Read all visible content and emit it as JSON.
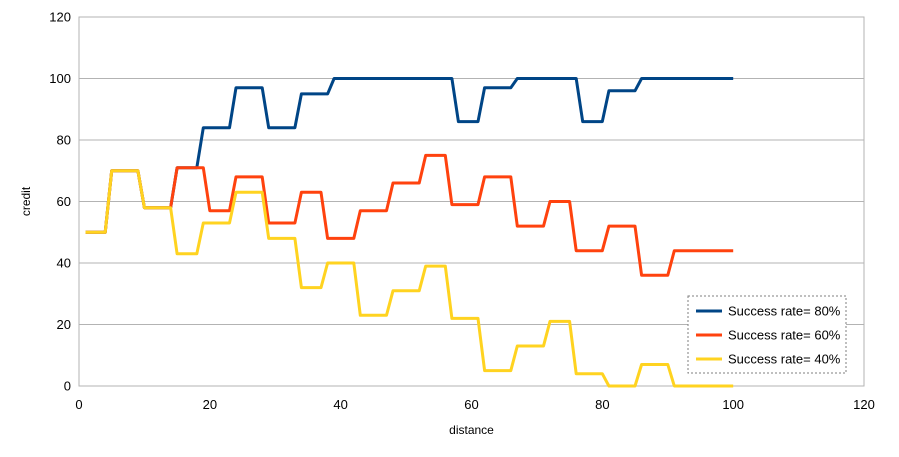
{
  "chart_data": {
    "type": "line",
    "title": "",
    "xlabel": "distance",
    "ylabel": "credit",
    "xlim": [
      0,
      120
    ],
    "ylim": [
      0,
      120
    ],
    "xticks": [
      0,
      20,
      40,
      60,
      80,
      100,
      120
    ],
    "yticks": [
      0,
      20,
      40,
      60,
      80,
      100,
      120
    ],
    "grid": "horizontal",
    "legend_position": "bottom-right",
    "series": [
      {
        "name": "Success rate= 80%",
        "color": "#004586",
        "points": [
          [
            1,
            50
          ],
          [
            4,
            50
          ],
          [
            5,
            70
          ],
          [
            9,
            70
          ],
          [
            10,
            58
          ],
          [
            14,
            58
          ],
          [
            15,
            71
          ],
          [
            18,
            71
          ],
          [
            19,
            84
          ],
          [
            23,
            84
          ],
          [
            24,
            97
          ],
          [
            28,
            97
          ],
          [
            29,
            84
          ],
          [
            33,
            84
          ],
          [
            34,
            95
          ],
          [
            38,
            95
          ],
          [
            39,
            100
          ],
          [
            57,
            100
          ],
          [
            58,
            86
          ],
          [
            61,
            86
          ],
          [
            62,
            97
          ],
          [
            66,
            97
          ],
          [
            67,
            100
          ],
          [
            76,
            100
          ],
          [
            77,
            86
          ],
          [
            80,
            86
          ],
          [
            81,
            96
          ],
          [
            85,
            96
          ],
          [
            86,
            100
          ],
          [
            100,
            100
          ]
        ]
      },
      {
        "name": "Success rate= 60%",
        "color": "#ff420e",
        "points": [
          [
            1,
            50
          ],
          [
            4,
            50
          ],
          [
            5,
            70
          ],
          [
            9,
            70
          ],
          [
            10,
            58
          ],
          [
            14,
            58
          ],
          [
            15,
            71
          ],
          [
            19,
            71
          ],
          [
            20,
            57
          ],
          [
            23,
            57
          ],
          [
            24,
            68
          ],
          [
            28,
            68
          ],
          [
            29,
            53
          ],
          [
            33,
            53
          ],
          [
            34,
            63
          ],
          [
            37,
            63
          ],
          [
            38,
            48
          ],
          [
            42,
            48
          ],
          [
            43,
            57
          ],
          [
            47,
            57
          ],
          [
            48,
            66
          ],
          [
            52,
            66
          ],
          [
            53,
            75
          ],
          [
            56,
            75
          ],
          [
            57,
            59
          ],
          [
            61,
            59
          ],
          [
            62,
            68
          ],
          [
            66,
            68
          ],
          [
            67,
            52
          ],
          [
            71,
            52
          ],
          [
            72,
            60
          ],
          [
            75,
            60
          ],
          [
            76,
            44
          ],
          [
            80,
            44
          ],
          [
            81,
            52
          ],
          [
            85,
            52
          ],
          [
            86,
            36
          ],
          [
            90,
            36
          ],
          [
            91,
            44
          ],
          [
            100,
            44
          ]
        ]
      },
      {
        "name": "Success rate= 40%",
        "color": "#ffd320",
        "points": [
          [
            1,
            50
          ],
          [
            4,
            50
          ],
          [
            5,
            70
          ],
          [
            9,
            70
          ],
          [
            10,
            58
          ],
          [
            14,
            58
          ],
          [
            15,
            43
          ],
          [
            18,
            43
          ],
          [
            19,
            53
          ],
          [
            23,
            53
          ],
          [
            24,
            63
          ],
          [
            28,
            63
          ],
          [
            29,
            48
          ],
          [
            33,
            48
          ],
          [
            34,
            32
          ],
          [
            37,
            32
          ],
          [
            38,
            40
          ],
          [
            42,
            40
          ],
          [
            43,
            23
          ],
          [
            47,
            23
          ],
          [
            48,
            31
          ],
          [
            52,
            31
          ],
          [
            53,
            39
          ],
          [
            56,
            39
          ],
          [
            57,
            22
          ],
          [
            61,
            22
          ],
          [
            62,
            5
          ],
          [
            66,
            5
          ],
          [
            67,
            13
          ],
          [
            71,
            13
          ],
          [
            72,
            21
          ],
          [
            75,
            21
          ],
          [
            76,
            4
          ],
          [
            80,
            4
          ],
          [
            81,
            0
          ],
          [
            85,
            0
          ],
          [
            86,
            7
          ],
          [
            90,
            7
          ],
          [
            91,
            0
          ],
          [
            100,
            0
          ]
        ]
      }
    ]
  }
}
